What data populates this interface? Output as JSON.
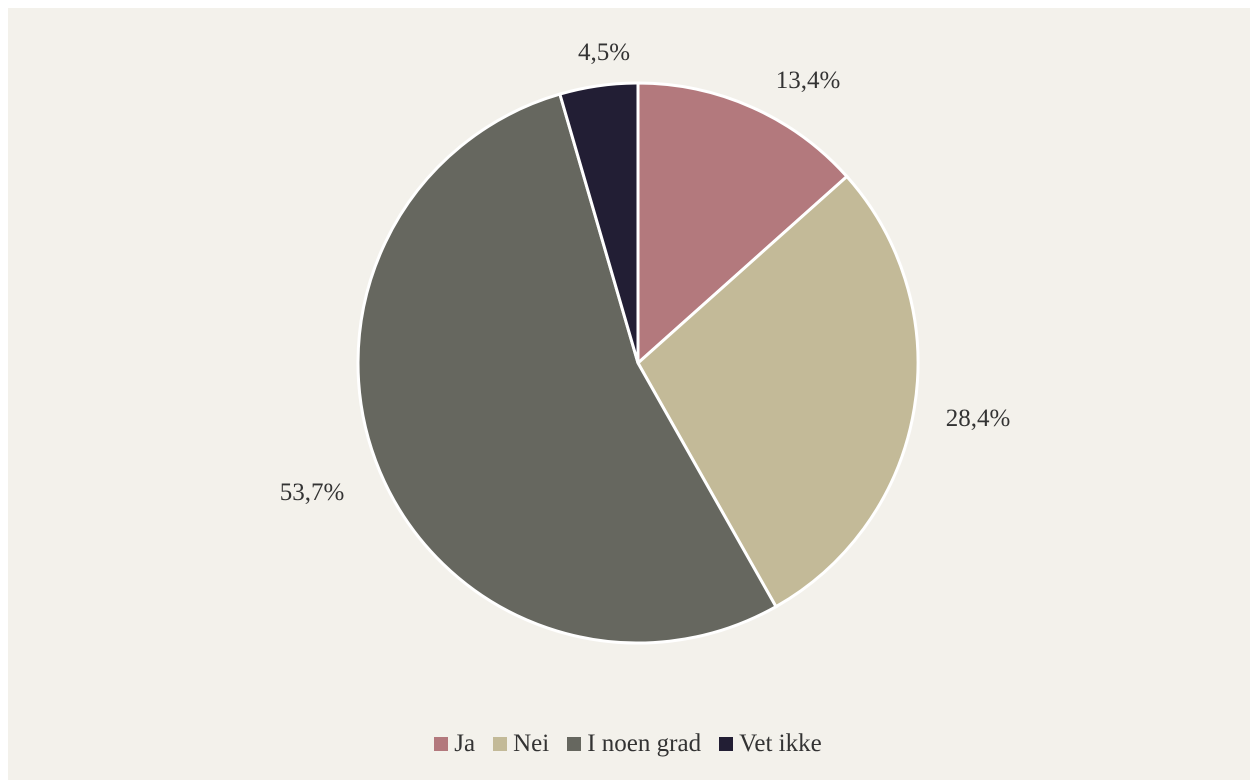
{
  "chart_data": {
    "type": "pie",
    "categories": [
      "Ja",
      "Nei",
      "I noen grad",
      "Vet ikke"
    ],
    "values": [
      13.4,
      28.4,
      53.7,
      4.5
    ],
    "labels": [
      "13,4%",
      "28,4%",
      "53,7%",
      "4,5%"
    ],
    "colors": [
      "#b3797d",
      "#c3ba98",
      "#66675f",
      "#221e34"
    ],
    "start_angle_deg": 0,
    "direction": "clockwise",
    "legend_position": "bottom"
  }
}
